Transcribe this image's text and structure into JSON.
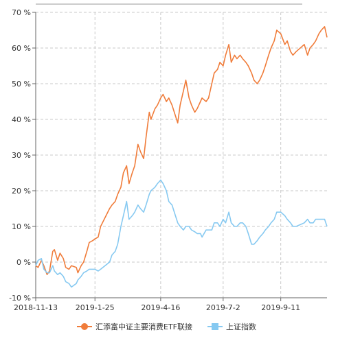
{
  "chart_data": {
    "type": "line",
    "title": "",
    "xlabel": "",
    "ylabel": "",
    "ylim": [
      -10,
      70
    ],
    "yticks": [
      -10,
      0,
      10,
      20,
      30,
      40,
      50,
      60,
      70
    ],
    "yticks_labels": [
      "-10 %",
      "0 %",
      "10 %",
      "20 %",
      "30 %",
      "40 %",
      "50 %",
      "60 %",
      "70 %"
    ],
    "xlim": [
      "2018-11-13",
      "2019-11-07"
    ],
    "xticks": [
      "2018-11-13",
      "2019-1-25",
      "2019-4-16",
      "2019-7-2",
      "2019-9-11"
    ],
    "grid": true,
    "legend_position": "bottom",
    "series": [
      {
        "name": "汇添富中证主要消费ETF联接",
        "color": "#f07c3a",
        "points": [
          [
            "2018-11-13",
            -1
          ],
          [
            "2018-11-16",
            -1.5
          ],
          [
            "2018-11-20",
            0.5
          ],
          [
            "2018-11-23",
            -1
          ],
          [
            "2018-11-27",
            -3.5
          ],
          [
            "2018-11-30",
            -2.5
          ],
          [
            "2018-12-04",
            3
          ],
          [
            "2018-12-06",
            3.5
          ],
          [
            "2018-12-10",
            0.5
          ],
          [
            "2018-12-13",
            2.5
          ],
          [
            "2018-12-17",
            1
          ],
          [
            "2018-12-20",
            -1.5
          ],
          [
            "2018-12-24",
            -2
          ],
          [
            "2018-12-27",
            -1
          ],
          [
            "2019-01-02",
            -1.5
          ],
          [
            "2019-01-04",
            -3
          ],
          [
            "2019-01-08",
            -1
          ],
          [
            "2019-01-11",
            0
          ],
          [
            "2019-01-15",
            3
          ],
          [
            "2019-01-18",
            5.5
          ],
          [
            "2019-01-22",
            6
          ],
          [
            "2019-01-25",
            6.5
          ],
          [
            "2019-01-29",
            7
          ],
          [
            "2019-02-01",
            10
          ],
          [
            "2019-02-12",
            15
          ],
          [
            "2019-02-15",
            16
          ],
          [
            "2019-02-19",
            17
          ],
          [
            "2019-02-22",
            19
          ],
          [
            "2019-02-26",
            21
          ],
          [
            "2019-03-01",
            25
          ],
          [
            "2019-03-05",
            27
          ],
          [
            "2019-03-08",
            22
          ],
          [
            "2019-03-12",
            25
          ],
          [
            "2019-03-15",
            27
          ],
          [
            "2019-03-19",
            33
          ],
          [
            "2019-03-22",
            31
          ],
          [
            "2019-03-26",
            29
          ],
          [
            "2019-03-29",
            35
          ],
          [
            "2019-04-02",
            42
          ],
          [
            "2019-04-04",
            40
          ],
          [
            "2019-04-09",
            43
          ],
          [
            "2019-04-12",
            44
          ],
          [
            "2019-04-16",
            46
          ],
          [
            "2019-04-19",
            47
          ],
          [
            "2019-04-23",
            45
          ],
          [
            "2019-04-26",
            46
          ],
          [
            "2019-04-30",
            44
          ],
          [
            "2019-05-07",
            39
          ],
          [
            "2019-05-10",
            44
          ],
          [
            "2019-05-14",
            48
          ],
          [
            "2019-05-17",
            51
          ],
          [
            "2019-05-21",
            46
          ],
          [
            "2019-05-24",
            44
          ],
          [
            "2019-05-28",
            42
          ],
          [
            "2019-05-31",
            43
          ],
          [
            "2019-06-04",
            45
          ],
          [
            "2019-06-06",
            46
          ],
          [
            "2019-06-11",
            45
          ],
          [
            "2019-06-14",
            46
          ],
          [
            "2019-06-18",
            50
          ],
          [
            "2019-06-21",
            53
          ],
          [
            "2019-06-25",
            54
          ],
          [
            "2019-06-28",
            56
          ],
          [
            "2019-07-02",
            55
          ],
          [
            "2019-07-05",
            58
          ],
          [
            "2019-07-09",
            61
          ],
          [
            "2019-07-12",
            56
          ],
          [
            "2019-07-16",
            58
          ],
          [
            "2019-07-19",
            57
          ],
          [
            "2019-07-23",
            58
          ],
          [
            "2019-07-26",
            57
          ],
          [
            "2019-07-30",
            56
          ],
          [
            "2019-08-02",
            55
          ],
          [
            "2019-08-06",
            53
          ],
          [
            "2019-08-09",
            51
          ],
          [
            "2019-08-13",
            50
          ],
          [
            "2019-08-16",
            51
          ],
          [
            "2019-08-20",
            53
          ],
          [
            "2019-08-23",
            55
          ],
          [
            "2019-08-27",
            58
          ],
          [
            "2019-08-30",
            60
          ],
          [
            "2019-09-03",
            62
          ],
          [
            "2019-09-06",
            65
          ],
          [
            "2019-09-11",
            64
          ],
          [
            "2019-09-16",
            61
          ],
          [
            "2019-09-19",
            62
          ],
          [
            "2019-09-23",
            59
          ],
          [
            "2019-09-26",
            58
          ],
          [
            "2019-09-30",
            59
          ],
          [
            "2019-10-10",
            61
          ],
          [
            "2019-10-14",
            58
          ],
          [
            "2019-10-17",
            60
          ],
          [
            "2019-10-21",
            61
          ],
          [
            "2019-10-24",
            62
          ],
          [
            "2019-10-28",
            64
          ],
          [
            "2019-10-31",
            65
          ],
          [
            "2019-11-04",
            66
          ],
          [
            "2019-11-07",
            63
          ]
        ]
      },
      {
        "name": "上证指数",
        "color": "#86c9f1",
        "points": [
          [
            "2018-11-13",
            -1
          ],
          [
            "2018-11-16",
            0.5
          ],
          [
            "2018-11-20",
            1
          ],
          [
            "2018-11-23",
            -2
          ],
          [
            "2018-11-27",
            -3
          ],
          [
            "2018-11-30",
            -3
          ],
          [
            "2018-12-04",
            -1
          ],
          [
            "2018-12-06",
            -2.5
          ],
          [
            "2018-12-10",
            -3.5
          ],
          [
            "2018-12-13",
            -3
          ],
          [
            "2018-12-17",
            -4
          ],
          [
            "2018-12-20",
            -5.5
          ],
          [
            "2018-12-24",
            -6
          ],
          [
            "2018-12-27",
            -7
          ],
          [
            "2019-01-02",
            -6
          ],
          [
            "2019-01-04",
            -5
          ],
          [
            "2019-01-08",
            -4
          ],
          [
            "2019-01-11",
            -3
          ],
          [
            "2019-01-15",
            -2.5
          ],
          [
            "2019-01-18",
            -2
          ],
          [
            "2019-01-22",
            -2
          ],
          [
            "2019-01-25",
            -2
          ],
          [
            "2019-01-29",
            -2.5
          ],
          [
            "2019-02-01",
            -2
          ],
          [
            "2019-02-12",
            0
          ],
          [
            "2019-02-15",
            2
          ],
          [
            "2019-02-19",
            3
          ],
          [
            "2019-02-22",
            5
          ],
          [
            "2019-02-26",
            10
          ],
          [
            "2019-03-01",
            13
          ],
          [
            "2019-03-05",
            17
          ],
          [
            "2019-03-08",
            12
          ],
          [
            "2019-03-12",
            13
          ],
          [
            "2019-03-15",
            14
          ],
          [
            "2019-03-19",
            16
          ],
          [
            "2019-03-22",
            15
          ],
          [
            "2019-03-26",
            14
          ],
          [
            "2019-03-29",
            16
          ],
          [
            "2019-04-02",
            19
          ],
          [
            "2019-04-04",
            20
          ],
          [
            "2019-04-09",
            21
          ],
          [
            "2019-04-12",
            22
          ],
          [
            "2019-04-16",
            23
          ],
          [
            "2019-04-19",
            22
          ],
          [
            "2019-04-23",
            20
          ],
          [
            "2019-04-26",
            17
          ],
          [
            "2019-04-30",
            16
          ],
          [
            "2019-05-07",
            11
          ],
          [
            "2019-05-10",
            10
          ],
          [
            "2019-05-14",
            9
          ],
          [
            "2019-05-17",
            10
          ],
          [
            "2019-05-21",
            10
          ],
          [
            "2019-05-24",
            9
          ],
          [
            "2019-05-28",
            8.5
          ],
          [
            "2019-05-31",
            8
          ],
          [
            "2019-06-04",
            8
          ],
          [
            "2019-06-06",
            7
          ],
          [
            "2019-06-11",
            9
          ],
          [
            "2019-06-14",
            9
          ],
          [
            "2019-06-18",
            9
          ],
          [
            "2019-06-21",
            11
          ],
          [
            "2019-06-25",
            11
          ],
          [
            "2019-06-28",
            10
          ],
          [
            "2019-07-02",
            12
          ],
          [
            "2019-07-05",
            11
          ],
          [
            "2019-07-09",
            14
          ],
          [
            "2019-07-12",
            11
          ],
          [
            "2019-07-16",
            10
          ],
          [
            "2019-07-19",
            10
          ],
          [
            "2019-07-23",
            11
          ],
          [
            "2019-07-26",
            11
          ],
          [
            "2019-07-30",
            10
          ],
          [
            "2019-08-02",
            8
          ],
          [
            "2019-08-06",
            5
          ],
          [
            "2019-08-09",
            5
          ],
          [
            "2019-08-13",
            6
          ],
          [
            "2019-08-16",
            7
          ],
          [
            "2019-08-20",
            8
          ],
          [
            "2019-08-23",
            9
          ],
          [
            "2019-08-27",
            10
          ],
          [
            "2019-08-30",
            11
          ],
          [
            "2019-09-03",
            12
          ],
          [
            "2019-09-06",
            14
          ],
          [
            "2019-09-11",
            14
          ],
          [
            "2019-09-16",
            13
          ],
          [
            "2019-09-19",
            12
          ],
          [
            "2019-09-23",
            11
          ],
          [
            "2019-09-26",
            10
          ],
          [
            "2019-09-30",
            10
          ],
          [
            "2019-10-10",
            11
          ],
          [
            "2019-10-14",
            12
          ],
          [
            "2019-10-17",
            11
          ],
          [
            "2019-10-21",
            11
          ],
          [
            "2019-10-24",
            12
          ],
          [
            "2019-10-28",
            12
          ],
          [
            "2019-10-31",
            12
          ],
          [
            "2019-11-04",
            12
          ],
          [
            "2019-11-07",
            10
          ]
        ]
      }
    ]
  }
}
